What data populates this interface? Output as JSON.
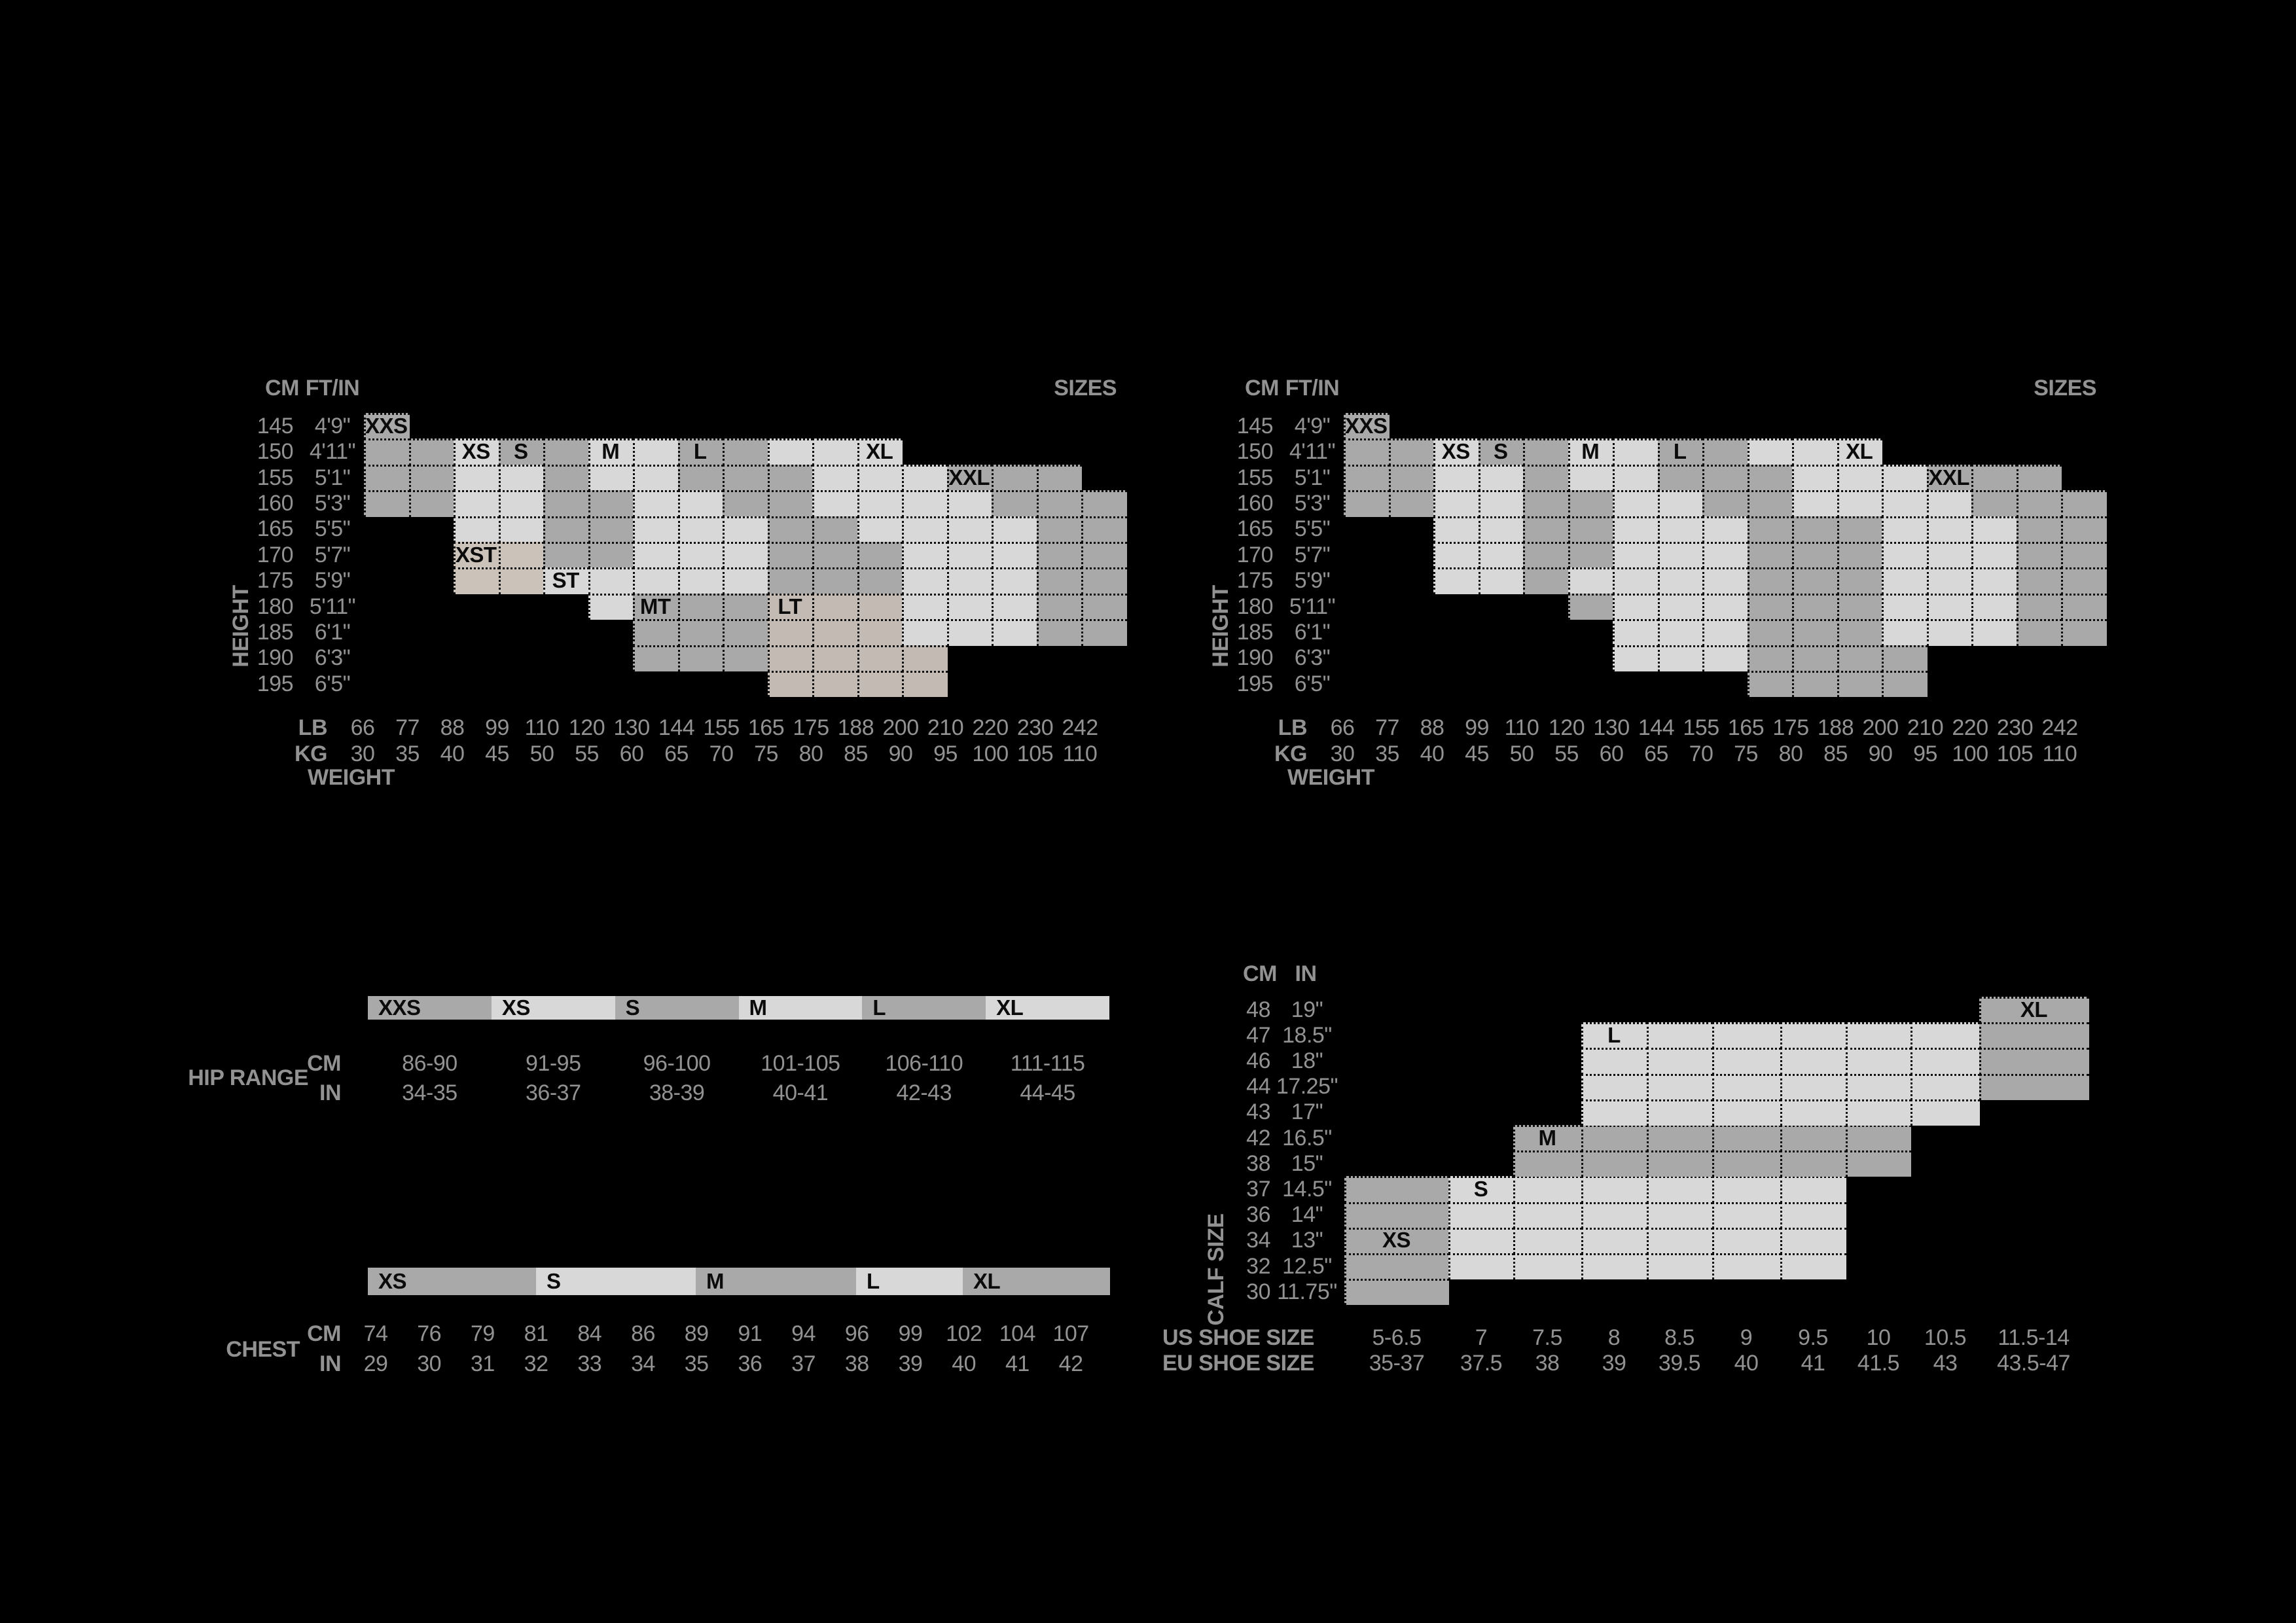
{
  "colors": {
    "background": "#000000",
    "medium_gray": "#a9a9a9",
    "light_gray": "#d8d8d8",
    "beige_light": "#cbc2ba",
    "beige_dark": "#c3bbb3",
    "text_gray": "#929292",
    "label_black": "#0b0b0b"
  },
  "fill_legend": {
    "m": "medium-gray size band",
    "l": "light-gray size band",
    "1": "beige tall-size band (XST/ST)",
    "2": "beige tall-size band (MT/LT)"
  },
  "chart_data": [
    {
      "id": "height-weight-chart-tall",
      "type": "heatmap",
      "labels": {
        "cm": "CM",
        "ftin": "FT/IN",
        "sizes": "SIZES",
        "height": "HEIGHT",
        "weight": "WEIGHT",
        "lb": "LB",
        "kg": "KG"
      },
      "sizes": [
        "XXS",
        "XS",
        "S",
        "M",
        "L",
        "XL",
        "XXL",
        "XST",
        "ST",
        "MT",
        "LT"
      ],
      "heights_cm": [
        "145",
        "150",
        "155",
        "160",
        "165",
        "170",
        "175",
        "180",
        "185",
        "190",
        "195"
      ],
      "heights_ftin": [
        "4'9\"",
        "4'11\"",
        "5'1\"",
        "5'3\"",
        "5'5\"",
        "5'7\"",
        "5'9\"",
        "5'11\"",
        "6'1\"",
        "6'3\"",
        "6'5\""
      ],
      "weights_lb": [
        "66",
        "77",
        "88",
        "99",
        "110",
        "120",
        "130",
        "144",
        "155",
        "165",
        "175",
        "188",
        "200",
        "210",
        "220",
        "230",
        "242"
      ],
      "weights_kg": [
        "30",
        "35",
        "40",
        "45",
        "50",
        "55",
        "60",
        "65",
        "70",
        "75",
        "80",
        "85",
        "90",
        "95",
        "100",
        "105",
        "110"
      ],
      "rows": [
        {
          "start": 0,
          "pattern": "m"
        },
        {
          "start": 0,
          "pattern": "mmlmmllmmlll"
        },
        {
          "start": 0,
          "pattern": "mmllmllmmmlllmmm"
        },
        {
          "start": 0,
          "pattern": "mmllmmllmmllllmmm"
        },
        {
          "start": 2,
          "pattern": "llmmlllmmllllmm"
        },
        {
          "start": 2,
          "pattern": "11mmlllmmmlllmm"
        },
        {
          "start": 2,
          "pattern": "11lllllmmmlllmm"
        },
        {
          "start": 5,
          "pattern": "lmmm222lllmm"
        },
        {
          "start": 6,
          "pattern": "mmm222lllmm"
        },
        {
          "start": 6,
          "pattern": "mmm2222"
        },
        {
          "start": 9,
          "pattern": "2222"
        }
      ],
      "size_labels": [
        {
          "text": "XXS",
          "r": 0,
          "c": 0
        },
        {
          "text": "XS",
          "r": 1,
          "c": 2
        },
        {
          "text": "S",
          "r": 1,
          "c": 3
        },
        {
          "text": "M",
          "r": 1,
          "c": 5
        },
        {
          "text": "L",
          "r": 1,
          "c": 7
        },
        {
          "text": "XL",
          "r": 1,
          "c": 11
        },
        {
          "text": "XXL",
          "r": 2,
          "c": 13
        },
        {
          "text": "XST",
          "r": 5,
          "c": 2
        },
        {
          "text": "ST",
          "r": 6,
          "c": 4
        },
        {
          "text": "MT",
          "r": 7,
          "c": 6
        },
        {
          "text": "LT",
          "r": 7,
          "c": 9
        }
      ]
    },
    {
      "id": "height-weight-chart-standard",
      "type": "heatmap",
      "labels": {
        "cm": "CM",
        "ftin": "FT/IN",
        "sizes": "SIZES",
        "height": "HEIGHT",
        "weight": "WEIGHT",
        "lb": "LB",
        "kg": "KG"
      },
      "sizes": [
        "XXS",
        "XS",
        "S",
        "M",
        "L",
        "XL",
        "XXL"
      ],
      "heights_cm": [
        "145",
        "150",
        "155",
        "160",
        "165",
        "170",
        "175",
        "180",
        "185",
        "190",
        "195"
      ],
      "heights_ftin": [
        "4'9\"",
        "4'11\"",
        "5'1\"",
        "5'3\"",
        "5'5\"",
        "5'7\"",
        "5'9\"",
        "5'11\"",
        "6'1\"",
        "6'3\"",
        "6'5\""
      ],
      "weights_lb": [
        "66",
        "77",
        "88",
        "99",
        "110",
        "120",
        "130",
        "144",
        "155",
        "165",
        "175",
        "188",
        "200",
        "210",
        "220",
        "230",
        "242"
      ],
      "weights_kg": [
        "30",
        "35",
        "40",
        "45",
        "50",
        "55",
        "60",
        "65",
        "70",
        "75",
        "80",
        "85",
        "90",
        "95",
        "100",
        "105",
        "110"
      ],
      "rows": [
        {
          "start": 0,
          "pattern": "m"
        },
        {
          "start": 0,
          "pattern": "mmlmmllmmlll"
        },
        {
          "start": 0,
          "pattern": "mmllmllmmmlllmmm"
        },
        {
          "start": 0,
          "pattern": "mmllmmllmmllllmmm"
        },
        {
          "start": 2,
          "pattern": "llmmlllmmmlllmm"
        },
        {
          "start": 2,
          "pattern": "llmmlllmmmlllmm"
        },
        {
          "start": 2,
          "pattern": "llmllllmmmlllmm"
        },
        {
          "start": 5,
          "pattern": "mlllmmmlllmm"
        },
        {
          "start": 6,
          "pattern": "lllmmmlllmm"
        },
        {
          "start": 6,
          "pattern": "lllmmmm"
        },
        {
          "start": 9,
          "pattern": "mmmm"
        }
      ],
      "size_labels": [
        {
          "text": "XXS",
          "r": 0,
          "c": 0
        },
        {
          "text": "XS",
          "r": 1,
          "c": 2
        },
        {
          "text": "S",
          "r": 1,
          "c": 3
        },
        {
          "text": "M",
          "r": 1,
          "c": 5
        },
        {
          "text": "L",
          "r": 1,
          "c": 7
        },
        {
          "text": "XL",
          "r": 1,
          "c": 11
        },
        {
          "text": "XXL",
          "r": 2,
          "c": 13
        }
      ]
    },
    {
      "id": "hip-chest-table",
      "type": "table",
      "hip": {
        "label": "HIP RANGE",
        "cm_label": "CM",
        "in_label": "IN",
        "sizes": [
          "XXS",
          "XS",
          "S",
          "M",
          "L",
          "XL"
        ],
        "fills": [
          "m",
          "l",
          "m",
          "l",
          "m",
          "l"
        ],
        "cm": [
          "86-90",
          "91-95",
          "96-100",
          "101-105",
          "106-110",
          "111-115"
        ],
        "in": [
          "34-35",
          "36-37",
          "38-39",
          "40-41",
          "42-43",
          "44-45"
        ]
      },
      "chest": {
        "label": "CHEST",
        "cm_label": "CM",
        "in_label": "IN",
        "sizes": [
          "XS",
          "S",
          "M",
          "L",
          "XL"
        ],
        "fills": [
          "m",
          "l",
          "m",
          "l",
          "m"
        ],
        "cm": [
          "74",
          "76",
          "79",
          "81",
          "84",
          "86",
          "89",
          "91",
          "94",
          "96",
          "99",
          "102",
          "104",
          "107"
        ],
        "in": [
          "29",
          "30",
          "31",
          "32",
          "33",
          "34",
          "35",
          "36",
          "37",
          "38",
          "39",
          "40",
          "41",
          "42"
        ]
      }
    },
    {
      "id": "calf-size-chart",
      "type": "heatmap",
      "labels": {
        "cm": "CM",
        "in": "IN",
        "side": "CALF SIZE",
        "us": "US SHOE SIZE",
        "eu": "EU SHOE SIZE"
      },
      "rows_cm": [
        "48",
        "47",
        "46",
        "44",
        "43",
        "42",
        "38",
        "37",
        "36",
        "34",
        "32",
        "30"
      ],
      "rows_in": [
        "19\"",
        "18.5\"",
        "18\"",
        "17.25\"",
        "17\"",
        "16.5\"",
        "15\"",
        "14.5\"",
        "14\"",
        "13\"",
        "12.5\"",
        "11.75\""
      ],
      "us": [
        "5-6.5",
        "7",
        "7.5",
        "8",
        "8.5",
        "9",
        "9.5",
        "10",
        "10.5",
        "11.5-14"
      ],
      "eu": [
        "35-37",
        "37.5",
        "38",
        "39",
        "39.5",
        "40",
        "41",
        "41.5",
        "43",
        "43.5-47"
      ],
      "regions": [
        {
          "size": "XS",
          "fill": "m",
          "row_start": 7,
          "row_end": 11,
          "col_start": 0,
          "col_end": 1,
          "label_r": 9,
          "label_c": 0
        },
        {
          "size": "S",
          "fill": "l",
          "row_start": 7,
          "row_end": 10,
          "col_start": 1,
          "col_end": 7,
          "label_r": 7,
          "label_c": 1
        },
        {
          "size": "M",
          "fill": "m",
          "row_start": 5,
          "row_end": 6,
          "col_start": 2,
          "col_end": 8,
          "label_r": 5,
          "label_c": 2
        },
        {
          "size": "L",
          "fill": "l",
          "row_start": 1,
          "row_end": 4,
          "col_start": 3,
          "col_end": 9,
          "label_r": 1,
          "label_c": 3
        },
        {
          "size": "XL",
          "fill": "m",
          "row_start": 0,
          "row_end": 3,
          "col_start": 9,
          "col_end": 10,
          "label_r": 0,
          "label_c": 9
        }
      ]
    }
  ]
}
